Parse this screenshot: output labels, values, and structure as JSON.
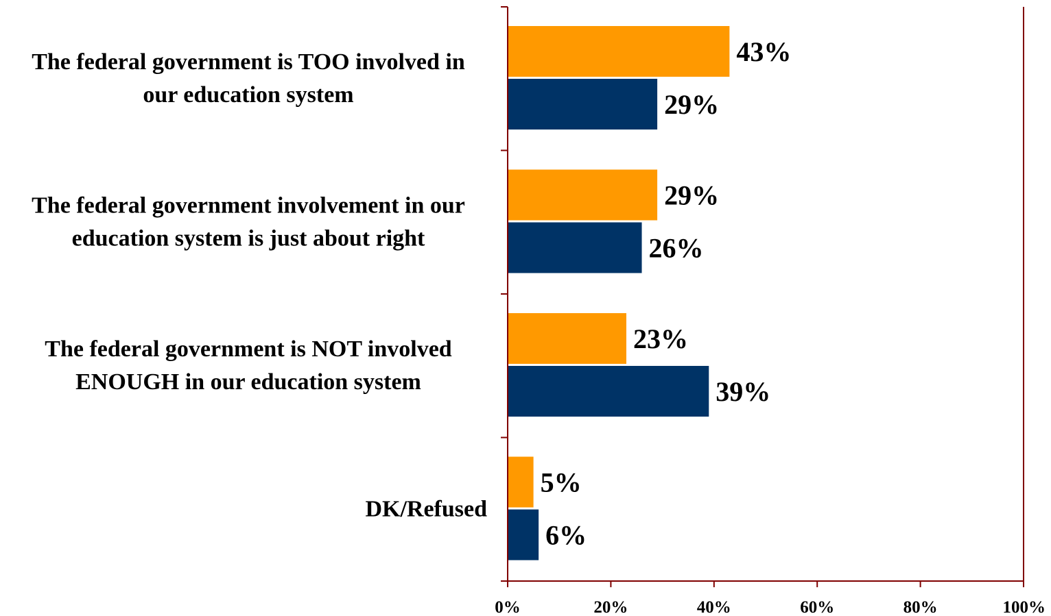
{
  "chart_data": {
    "type": "bar",
    "orientation": "horizontal",
    "categories": [
      [
        "The federal government is TOO involved in",
        "our education system"
      ],
      [
        "The federal government involvement in our",
        "education system is just about right"
      ],
      [
        "The federal government is NOT involved",
        "ENOUGH in our education system"
      ],
      [
        "DK/Refused"
      ]
    ],
    "series": [
      {
        "color": "#FF9900",
        "values": [
          43,
          29,
          23,
          5
        ],
        "labels": [
          "43%",
          "29%",
          "23%",
          "5%"
        ]
      },
      {
        "color": "#003366",
        "values": [
          29,
          26,
          39,
          6
        ],
        "labels": [
          "29%",
          "26%",
          "39%",
          "6%"
        ]
      }
    ],
    "xlim": [
      0,
      100
    ],
    "xticks": [
      0,
      20,
      40,
      60,
      80,
      100
    ],
    "xtick_labels": [
      "0%",
      "20%",
      "40%",
      "60%",
      "80%",
      "100%"
    ],
    "axis_color": "#800000",
    "grid": false,
    "legend": "none",
    "title": "",
    "xlabel": "",
    "ylabel": ""
  }
}
